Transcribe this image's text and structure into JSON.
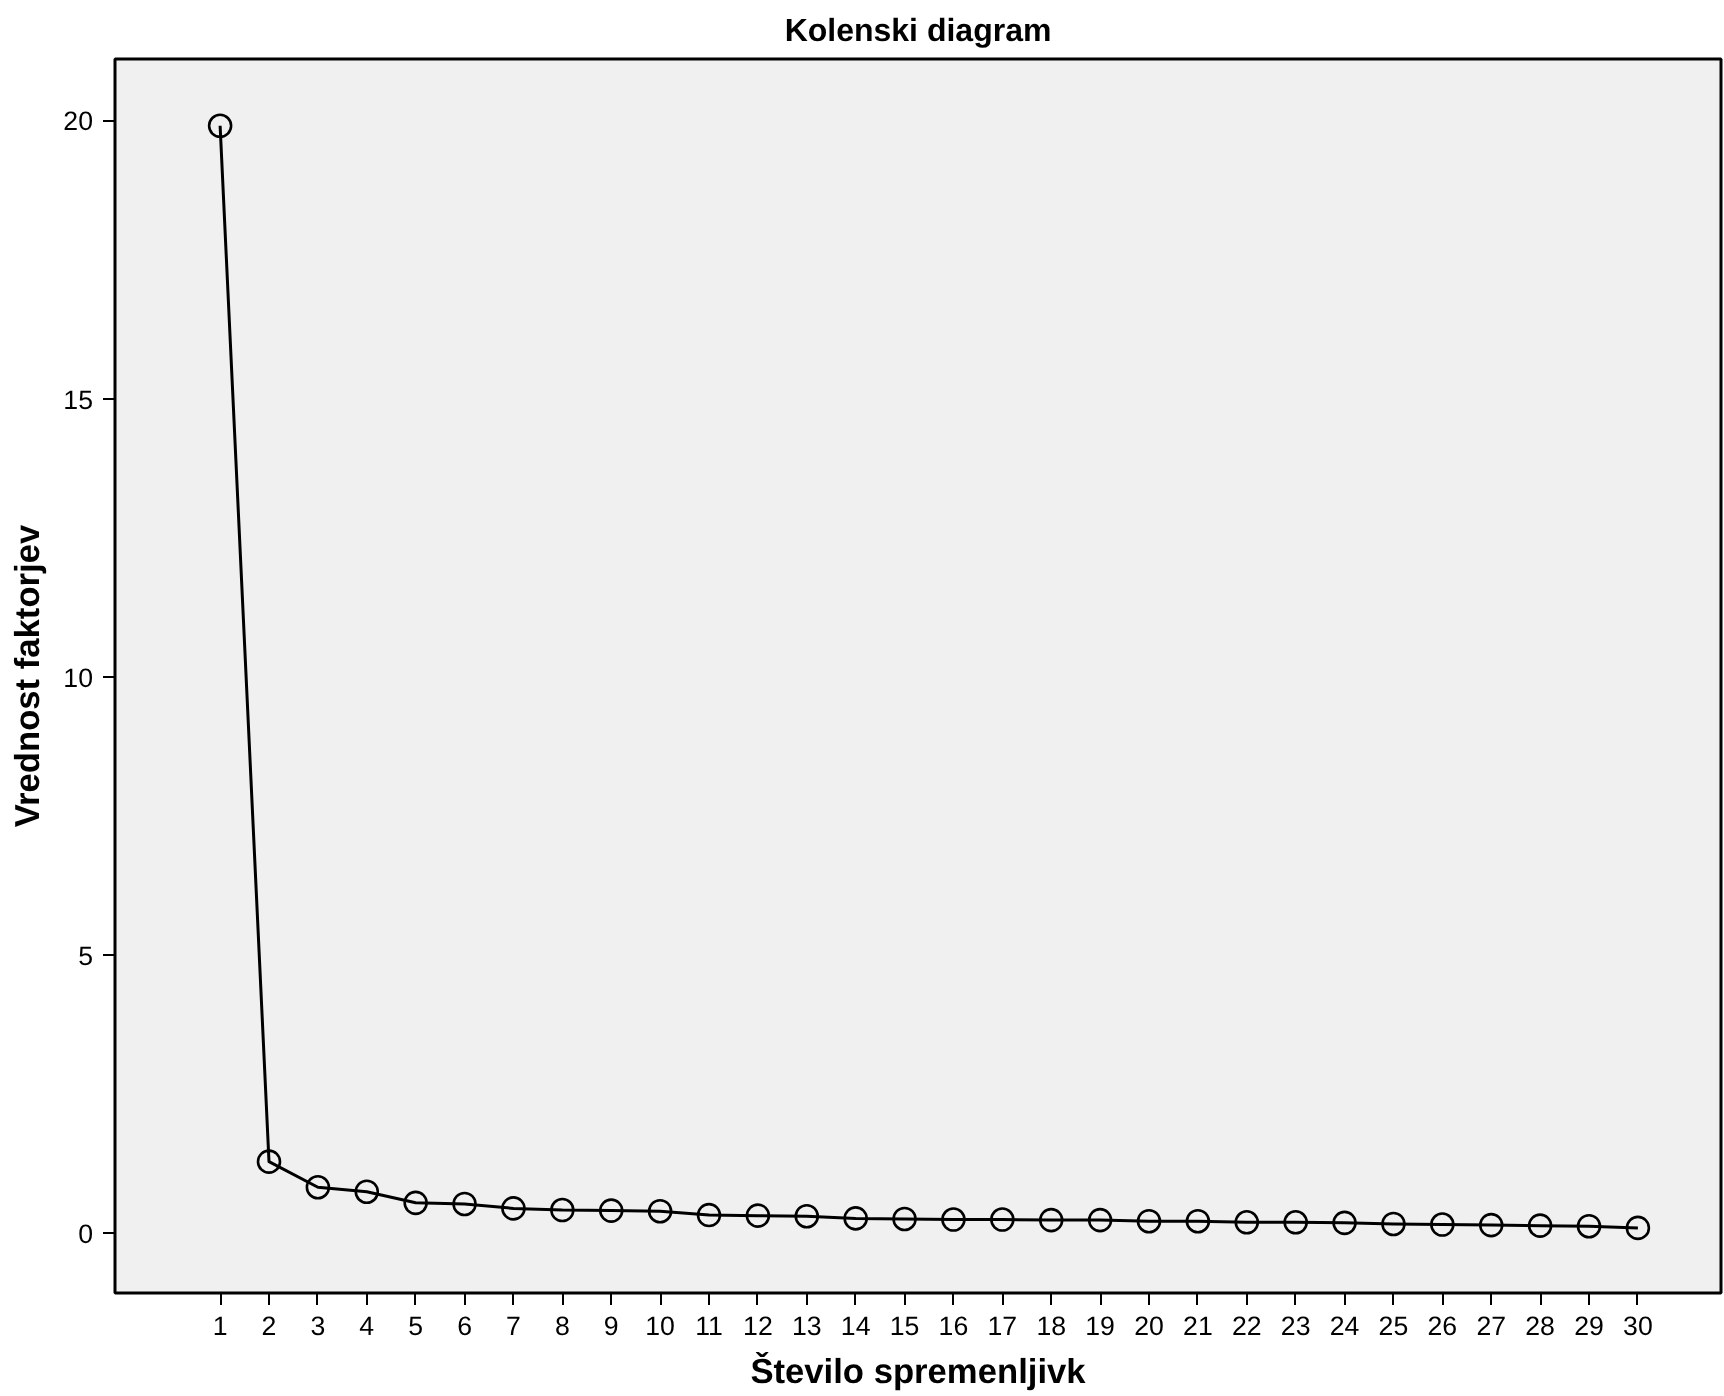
{
  "chart_data": {
    "type": "line",
    "title": "Kolenski diagram",
    "xlabel": "Število spremenljivk",
    "ylabel": "Vrednost faktorjev",
    "x": [
      1,
      2,
      3,
      4,
      5,
      6,
      7,
      8,
      9,
      10,
      11,
      12,
      13,
      14,
      15,
      16,
      17,
      18,
      19,
      20,
      21,
      22,
      23,
      24,
      25,
      26,
      27,
      28,
      29,
      30
    ],
    "series": [
      {
        "color": "#000000",
        "values": [
          19.9,
          1.29,
          0.83,
          0.75,
          0.55,
          0.53,
          0.45,
          0.42,
          0.41,
          0.4,
          0.33,
          0.32,
          0.31,
          0.27,
          0.26,
          0.25,
          0.25,
          0.24,
          0.24,
          0.22,
          0.22,
          0.2,
          0.2,
          0.19,
          0.17,
          0.16,
          0.15,
          0.14,
          0.13,
          0.1
        ]
      }
    ],
    "xlim": [
      -1.15,
      31.7
    ],
    "ylim": [
      -1.07,
      21.1
    ],
    "xticks": [
      1,
      2,
      3,
      4,
      5,
      6,
      7,
      8,
      9,
      10,
      11,
      12,
      13,
      14,
      15,
      16,
      17,
      18,
      19,
      20,
      21,
      22,
      23,
      24,
      25,
      26,
      27,
      28,
      29,
      30
    ],
    "yticks": [
      0,
      5,
      10,
      15,
      20
    ],
    "grid": false,
    "marker": "circle",
    "line_style": "solid"
  }
}
